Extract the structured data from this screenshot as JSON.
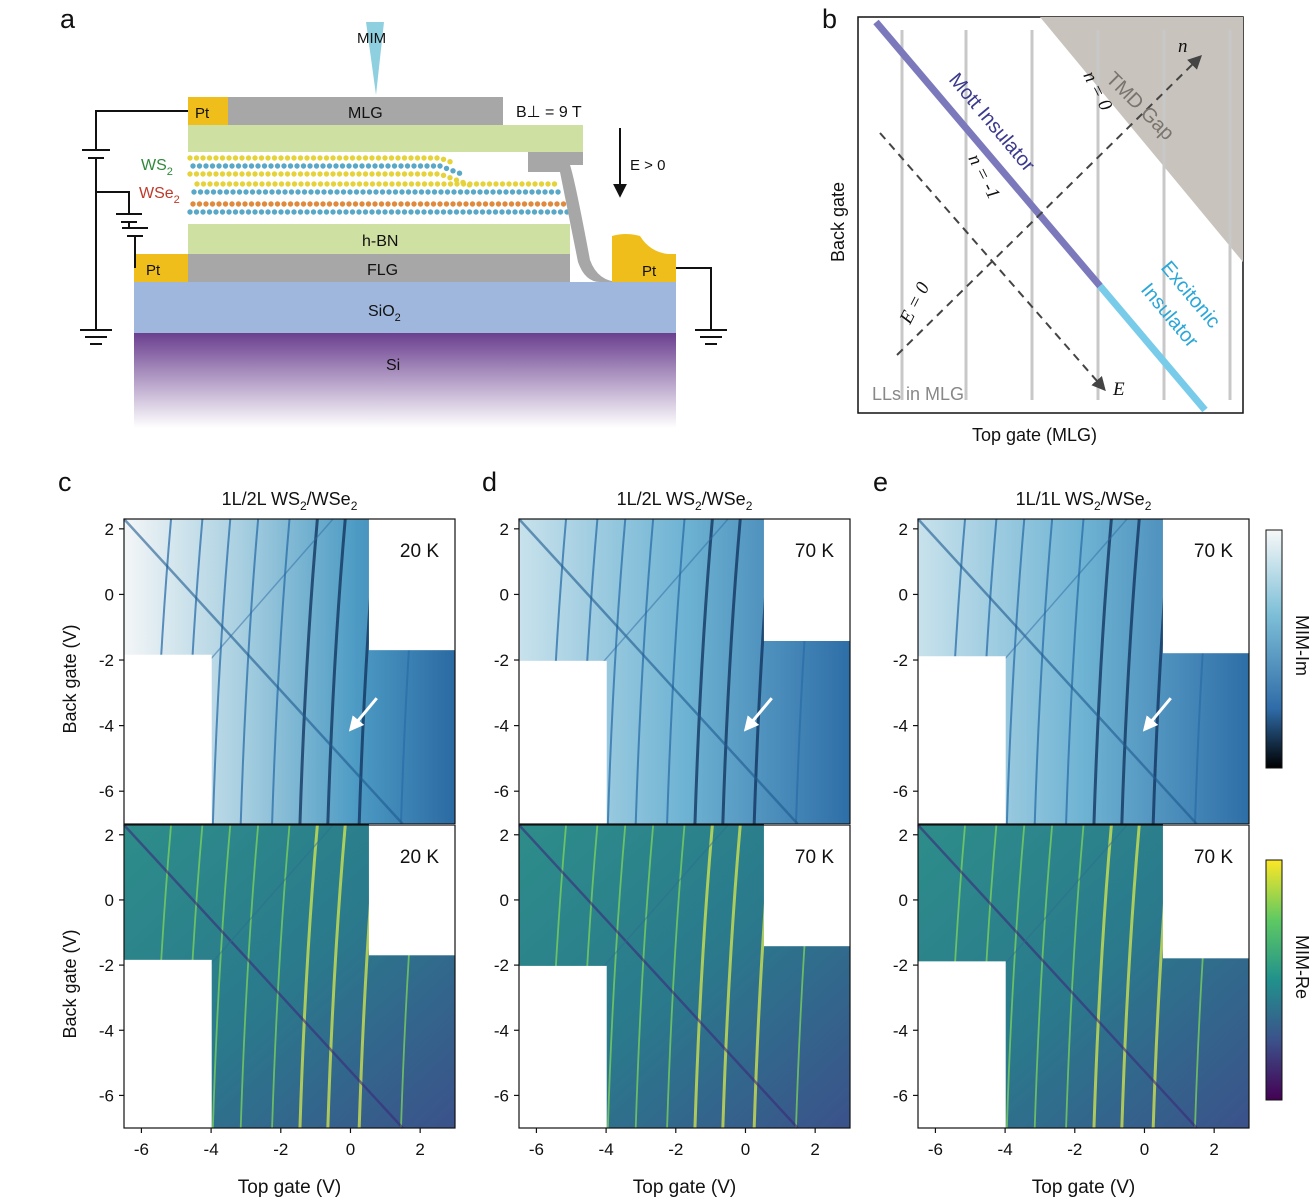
{
  "panel_labels": {
    "a": "a",
    "b": "b",
    "c": "c",
    "d": "d",
    "e": "e"
  },
  "panel_a": {
    "mim": "MIM",
    "pt": "Pt",
    "mlg": "MLG",
    "field": "B⊥ = 9 T",
    "ws2_base": "WS",
    "ws2_sub": "2",
    "wse2_base": "WSe",
    "wse2_sub": "2",
    "efield": "E > 0",
    "hbn": "h-BN",
    "flg": "FLG",
    "sio2_base": "SiO",
    "sio2_sub": "2",
    "si": "Si",
    "colors": {
      "pt": "#f0be1a",
      "graphite": "#a7a7a7",
      "hbn": "#cfe0a3",
      "sio2": "#9fb7dc",
      "si_top": "#6a3f8f",
      "tip": "#8fd0e0",
      "ws2_atom": "#e6d33b",
      "wse2_atom": "#e08a3d",
      "chalc": "#5aa8c8"
    }
  },
  "panel_b": {
    "xlabel": "Top gate (MLG)",
    "ylabel": "Back gate",
    "n_arrow": "n",
    "e_arrow": "E",
    "n0": "n = 0",
    "nm1": "n = -1",
    "e0": "E = 0",
    "mott": "Mott Insulator",
    "exc1": "Excitonic",
    "exc2": "Insulator",
    "tmd_gap": "TMD Gap",
    "lls": "LLs in MLG",
    "colors": {
      "mott": "#7b78bc",
      "excitonic": "#79cbea",
      "gap": "#c9c3be",
      "ll": "#c8c8c8"
    }
  },
  "maps": {
    "ylabel": "Back gate (V)",
    "xlabel": "Top gate (V)",
    "xticks": [
      "-6",
      "-4",
      "-2",
      "0",
      "2"
    ],
    "yticks": [
      "2",
      "0",
      "-2",
      "-4",
      "-6"
    ],
    "xlim": [
      -6.5,
      3
    ],
    "ylim": [
      -7,
      2.3
    ],
    "columns": [
      {
        "title_pre": "1L/2L WS",
        "title_s1": "2",
        "title_mid": "/WSe",
        "title_s2": "2",
        "temp": "20 K",
        "im_temp": "20 K",
        "re_temp": "20 K"
      },
      {
        "title_pre": "1L/2L WS",
        "title_s1": "2",
        "title_mid": "/WSe",
        "title_s2": "2",
        "temp": "70 K",
        "im_temp": "70 K",
        "re_temp": "70 K"
      },
      {
        "title_pre": "1L/1L WS",
        "title_s1": "2",
        "title_mid": "/WSe",
        "title_s2": "2",
        "temp": "70 K",
        "im_temp": "70 K",
        "re_temp": "70 K"
      }
    ],
    "colorbar_im": "MIM-Im",
    "colorbar_re": "MIM-Re"
  }
}
